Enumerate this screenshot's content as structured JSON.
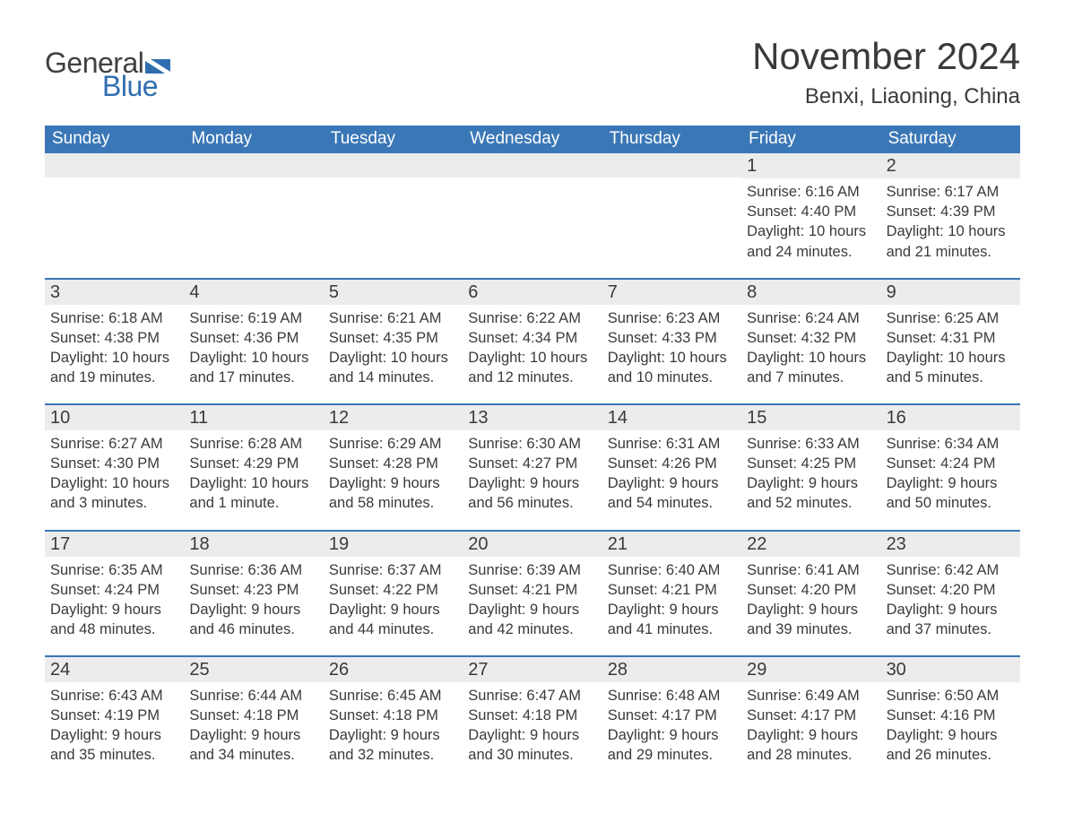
{
  "brand": {
    "word1": "General",
    "word2": "Blue",
    "word1_color": "#404040",
    "word2_color": "#2f6fb0",
    "mark_color": "#2f6fb0"
  },
  "title": "November 2024",
  "location": "Benxi, Liaoning, China",
  "colors": {
    "header_bg": "#3a77b6",
    "header_text": "#ffffff",
    "daynum_bg": "#ececec",
    "text": "#3a3a3a",
    "week_divider": "#3a77b6",
    "page_bg": "#ffffff"
  },
  "fonts": {
    "title_size_pt": 32,
    "location_size_pt": 18,
    "dow_size_pt": 14,
    "daynum_size_pt": 15,
    "body_size_pt": 12
  },
  "days_of_week": [
    "Sunday",
    "Monday",
    "Tuesday",
    "Wednesday",
    "Thursday",
    "Friday",
    "Saturday"
  ],
  "first_weekday_index": 5,
  "days": [
    {
      "n": 1,
      "sunrise": "6:16 AM",
      "sunset": "4:40 PM",
      "daylight": "10 hours and 24 minutes."
    },
    {
      "n": 2,
      "sunrise": "6:17 AM",
      "sunset": "4:39 PM",
      "daylight": "10 hours and 21 minutes."
    },
    {
      "n": 3,
      "sunrise": "6:18 AM",
      "sunset": "4:38 PM",
      "daylight": "10 hours and 19 minutes."
    },
    {
      "n": 4,
      "sunrise": "6:19 AM",
      "sunset": "4:36 PM",
      "daylight": "10 hours and 17 minutes."
    },
    {
      "n": 5,
      "sunrise": "6:21 AM",
      "sunset": "4:35 PM",
      "daylight": "10 hours and 14 minutes."
    },
    {
      "n": 6,
      "sunrise": "6:22 AM",
      "sunset": "4:34 PM",
      "daylight": "10 hours and 12 minutes."
    },
    {
      "n": 7,
      "sunrise": "6:23 AM",
      "sunset": "4:33 PM",
      "daylight": "10 hours and 10 minutes."
    },
    {
      "n": 8,
      "sunrise": "6:24 AM",
      "sunset": "4:32 PM",
      "daylight": "10 hours and 7 minutes."
    },
    {
      "n": 9,
      "sunrise": "6:25 AM",
      "sunset": "4:31 PM",
      "daylight": "10 hours and 5 minutes."
    },
    {
      "n": 10,
      "sunrise": "6:27 AM",
      "sunset": "4:30 PM",
      "daylight": "10 hours and 3 minutes."
    },
    {
      "n": 11,
      "sunrise": "6:28 AM",
      "sunset": "4:29 PM",
      "daylight": "10 hours and 1 minute."
    },
    {
      "n": 12,
      "sunrise": "6:29 AM",
      "sunset": "4:28 PM",
      "daylight": "9 hours and 58 minutes."
    },
    {
      "n": 13,
      "sunrise": "6:30 AM",
      "sunset": "4:27 PM",
      "daylight": "9 hours and 56 minutes."
    },
    {
      "n": 14,
      "sunrise": "6:31 AM",
      "sunset": "4:26 PM",
      "daylight": "9 hours and 54 minutes."
    },
    {
      "n": 15,
      "sunrise": "6:33 AM",
      "sunset": "4:25 PM",
      "daylight": "9 hours and 52 minutes."
    },
    {
      "n": 16,
      "sunrise": "6:34 AM",
      "sunset": "4:24 PM",
      "daylight": "9 hours and 50 minutes."
    },
    {
      "n": 17,
      "sunrise": "6:35 AM",
      "sunset": "4:24 PM",
      "daylight": "9 hours and 48 minutes."
    },
    {
      "n": 18,
      "sunrise": "6:36 AM",
      "sunset": "4:23 PM",
      "daylight": "9 hours and 46 minutes."
    },
    {
      "n": 19,
      "sunrise": "6:37 AM",
      "sunset": "4:22 PM",
      "daylight": "9 hours and 44 minutes."
    },
    {
      "n": 20,
      "sunrise": "6:39 AM",
      "sunset": "4:21 PM",
      "daylight": "9 hours and 42 minutes."
    },
    {
      "n": 21,
      "sunrise": "6:40 AM",
      "sunset": "4:21 PM",
      "daylight": "9 hours and 41 minutes."
    },
    {
      "n": 22,
      "sunrise": "6:41 AM",
      "sunset": "4:20 PM",
      "daylight": "9 hours and 39 minutes."
    },
    {
      "n": 23,
      "sunrise": "6:42 AM",
      "sunset": "4:20 PM",
      "daylight": "9 hours and 37 minutes."
    },
    {
      "n": 24,
      "sunrise": "6:43 AM",
      "sunset": "4:19 PM",
      "daylight": "9 hours and 35 minutes."
    },
    {
      "n": 25,
      "sunrise": "6:44 AM",
      "sunset": "4:18 PM",
      "daylight": "9 hours and 34 minutes."
    },
    {
      "n": 26,
      "sunrise": "6:45 AM",
      "sunset": "4:18 PM",
      "daylight": "9 hours and 32 minutes."
    },
    {
      "n": 27,
      "sunrise": "6:47 AM",
      "sunset": "4:18 PM",
      "daylight": "9 hours and 30 minutes."
    },
    {
      "n": 28,
      "sunrise": "6:48 AM",
      "sunset": "4:17 PM",
      "daylight": "9 hours and 29 minutes."
    },
    {
      "n": 29,
      "sunrise": "6:49 AM",
      "sunset": "4:17 PM",
      "daylight": "9 hours and 28 minutes."
    },
    {
      "n": 30,
      "sunrise": "6:50 AM",
      "sunset": "4:16 PM",
      "daylight": "9 hours and 26 minutes."
    }
  ],
  "labels": {
    "sunrise": "Sunrise:",
    "sunset": "Sunset:",
    "daylight": "Daylight:"
  }
}
